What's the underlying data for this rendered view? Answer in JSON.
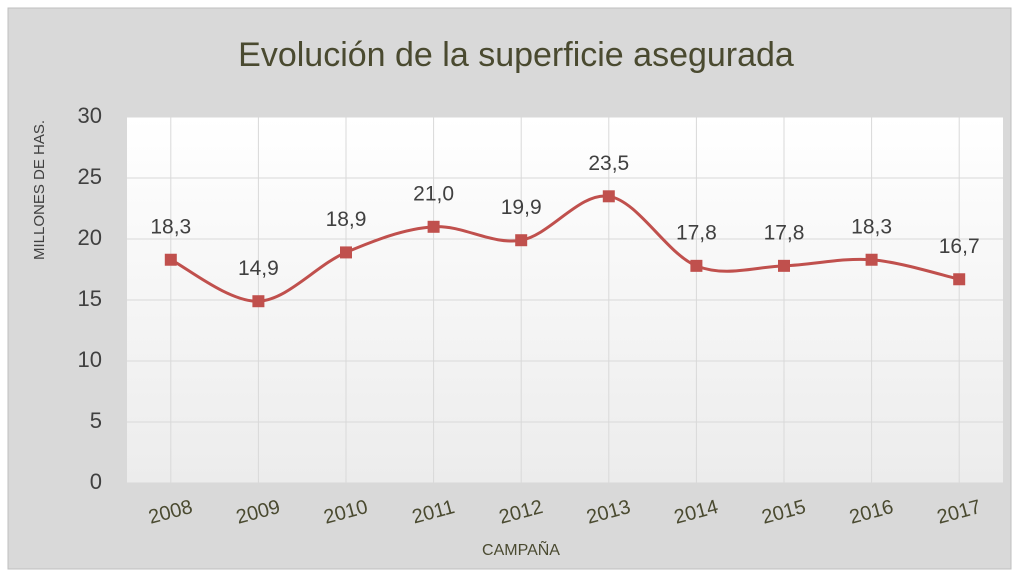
{
  "chart_data": {
    "type": "line",
    "title": "Evolución  de la superficie  asegurada",
    "x_label": "CAMPAÑA",
    "y_label": "MILLONES DE HAS.",
    "categories": [
      "2008",
      "2009",
      "2010",
      "2011",
      "2012",
      "2013",
      "2014",
      "2015",
      "2016",
      "2017"
    ],
    "values": [
      18.3,
      14.9,
      18.9,
      21.0,
      19.9,
      23.5,
      17.8,
      17.8,
      18.3,
      16.7
    ],
    "value_labels": [
      "18,3",
      "14,9",
      "18,9",
      "21,0",
      "19,9",
      "23,5",
      "17,8",
      "17,8",
      "18,3",
      "16,7"
    ],
    "color": "#c0504d",
    "smooth": true,
    "ylim": [
      0,
      30
    ],
    "yticks": [
      0,
      5,
      10,
      15,
      20,
      25,
      30
    ],
    "grid": true
  }
}
